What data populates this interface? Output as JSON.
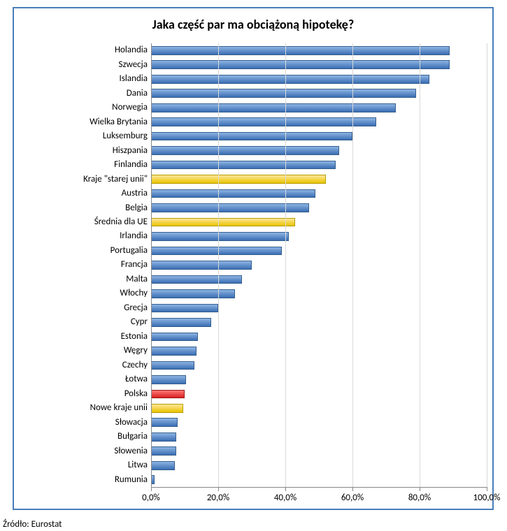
{
  "chart": {
    "title": "Jaka część par ma obciążoną hipotekę?",
    "title_fontsize": 18,
    "source_label": "Źródło: Eurostat",
    "source_fontsize": 13,
    "label_fontsize": 13,
    "tick_fontsize": 13,
    "border_color": "#4a7ebb",
    "background_color": "#ffffff",
    "grid_color": "#d9d9d9",
    "axis_line_color": "#878787",
    "xmin": 0.0,
    "xmax": 100.0,
    "xtick_step": 20.0,
    "xaxis_format_suffix": "%",
    "xaxis_decimals": 1,
    "categories": [
      {
        "label": "Holandia",
        "value": 89.0,
        "series": "default"
      },
      {
        "label": "Szwecja",
        "value": 89.0,
        "series": "default"
      },
      {
        "label": "Islandia",
        "value": 83.0,
        "series": "default"
      },
      {
        "label": "Dania",
        "value": 79.0,
        "series": "default"
      },
      {
        "label": "Norwegia",
        "value": 73.0,
        "series": "default"
      },
      {
        "label": "Wielka Brytania",
        "value": 67.0,
        "series": "default"
      },
      {
        "label": "Luksemburg",
        "value": 60.0,
        "series": "default"
      },
      {
        "label": "Hiszpania",
        "value": 56.0,
        "series": "default"
      },
      {
        "label": "Finlandia",
        "value": 55.0,
        "series": "default"
      },
      {
        "label": "Kraje \"starej unii\"",
        "value": 52.0,
        "series": "yellow"
      },
      {
        "label": "Austria",
        "value": 49.0,
        "series": "default"
      },
      {
        "label": "Belgia",
        "value": 47.0,
        "series": "default"
      },
      {
        "label": "Średnia dla UE",
        "value": 43.0,
        "series": "yellow"
      },
      {
        "label": "Irlandia",
        "value": 41.0,
        "series": "default"
      },
      {
        "label": "Portugalia",
        "value": 39.0,
        "series": "default"
      },
      {
        "label": "Francja",
        "value": 30.0,
        "series": "default"
      },
      {
        "label": "Malta",
        "value": 27.0,
        "series": "default"
      },
      {
        "label": "Włochy",
        "value": 25.0,
        "series": "default"
      },
      {
        "label": "Grecja",
        "value": 20.0,
        "series": "default"
      },
      {
        "label": "Cypr",
        "value": 18.0,
        "series": "default"
      },
      {
        "label": "Estonia",
        "value": 14.0,
        "series": "default"
      },
      {
        "label": "Węgry",
        "value": 13.5,
        "series": "default"
      },
      {
        "label": "Czechy",
        "value": 13.0,
        "series": "default"
      },
      {
        "label": "Łotwa",
        "value": 10.5,
        "series": "default"
      },
      {
        "label": "Polska",
        "value": 10.0,
        "series": "red"
      },
      {
        "label": "Nowe kraje unii",
        "value": 9.5,
        "series": "yellow"
      },
      {
        "label": "Słowacja",
        "value": 8.0,
        "series": "default"
      },
      {
        "label": "Bułgaria",
        "value": 7.5,
        "series": "default"
      },
      {
        "label": "Słowenia",
        "value": 7.5,
        "series": "default"
      },
      {
        "label": "Litwa",
        "value": 7.0,
        "series": "default"
      },
      {
        "label": "Rumunia",
        "value": 1.0,
        "series": "default"
      }
    ],
    "series_styles": {
      "default": {
        "fill_top": "#8db4e3",
        "fill_bottom": "#3a6db3",
        "border": "#35608f"
      },
      "yellow": {
        "fill_top": "#ffe799",
        "fill_bottom": "#e8c300",
        "border": "#b89b00"
      },
      "red": {
        "fill_top": "#ff7a7a",
        "fill_bottom": "#d82020",
        "border": "#a01818"
      }
    },
    "bar_width_ratio": 0.62
  }
}
